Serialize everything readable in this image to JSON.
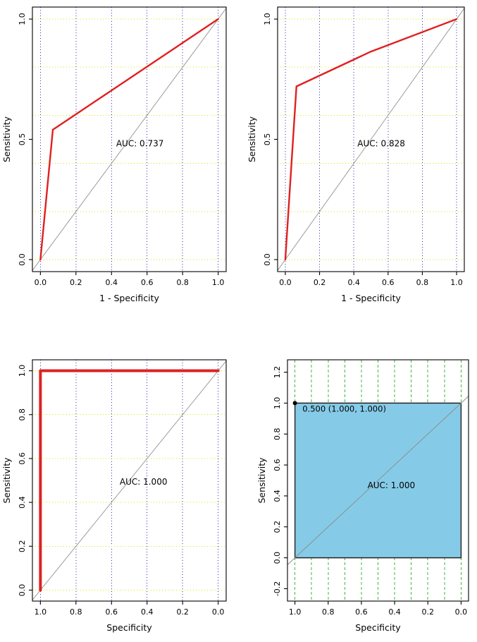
{
  "figure": {
    "background": "#ffffff",
    "panel_count": 4,
    "description": "Four ROC curve panels"
  },
  "chart_data": [
    {
      "type": "line",
      "name": "roc-top-left",
      "title": "",
      "xlabel": "1 - Specificity",
      "ylabel": "Sensitivity",
      "x_reversed": false,
      "x_range": [
        -0.045,
        1.045
      ],
      "y_range": [
        -0.05,
        1.05
      ],
      "x_ticks": [
        0,
        0.2,
        0.4,
        0.6,
        0.8,
        1
      ],
      "x_tick_labels": [
        "0.0",
        "0.2",
        "0.4",
        "0.6",
        "0.8",
        "1.0"
      ],
      "y_ticks": [
        0,
        0.5,
        1
      ],
      "y_tick_labels": [
        "0.0",
        "0.5",
        "1.0"
      ],
      "grid_v": {
        "values": [
          0,
          0.2,
          0.4,
          0.6,
          0.8,
          1
        ],
        "color": "#2b2bb4",
        "dash": "1,3"
      },
      "grid_h": {
        "values": [
          0,
          0.2,
          0.4,
          0.6,
          0.8,
          1
        ],
        "color": "#e2e200",
        "dash": "1,3"
      },
      "diagonal": {
        "from": [
          -0.045,
          -0.045
        ],
        "to": [
          1.045,
          1.045
        ],
        "color": "#9b9b9b"
      },
      "series": [
        {
          "name": "ROC curve",
          "color": "#e02020",
          "width": 2.4,
          "points": [
            [
              0,
              0
            ],
            [
              0.07,
              0.54
            ],
            [
              1,
              1
            ]
          ]
        }
      ],
      "annotations": [
        {
          "text": "AUC: 0.737",
          "x": 0.56,
          "y": 0.47,
          "color": "#e02020",
          "anchor": "middle",
          "size": 12
        }
      ]
    },
    {
      "type": "line",
      "name": "roc-top-right",
      "title": "",
      "xlabel": "1 - Specificity",
      "ylabel": "Sensitivity",
      "x_reversed": false,
      "x_range": [
        -0.045,
        1.045
      ],
      "y_range": [
        -0.05,
        1.05
      ],
      "x_ticks": [
        0,
        0.2,
        0.4,
        0.6,
        0.8,
        1
      ],
      "x_tick_labels": [
        "0.0",
        "0.2",
        "0.4",
        "0.6",
        "0.8",
        "1.0"
      ],
      "y_ticks": [
        0,
        0.5,
        1
      ],
      "y_tick_labels": [
        "0.0",
        "0.5",
        "1.0"
      ],
      "grid_v": {
        "values": [
          0,
          0.2,
          0.4,
          0.6,
          0.8,
          1
        ],
        "color": "#2b2bb4",
        "dash": "1,3"
      },
      "grid_h": {
        "values": [
          0,
          0.2,
          0.4,
          0.6,
          0.8,
          1
        ],
        "color": "#e2e200",
        "dash": "1,3"
      },
      "diagonal": {
        "from": [
          -0.045,
          -0.045
        ],
        "to": [
          1.045,
          1.045
        ],
        "color": "#9b9b9b"
      },
      "series": [
        {
          "name": "ROC curve",
          "color": "#e02020",
          "width": 2.4,
          "points": [
            [
              0,
              0
            ],
            [
              0.065,
              0.72
            ],
            [
              0.5,
              0.865
            ],
            [
              1,
              1
            ]
          ]
        }
      ],
      "annotations": [
        {
          "text": "AUC: 0.828",
          "x": 0.56,
          "y": 0.47,
          "color": "#e02020",
          "anchor": "middle",
          "size": 12
        }
      ]
    },
    {
      "type": "line",
      "name": "roc-bottom-left",
      "title": "",
      "xlabel": "Specificity",
      "ylabel": "Sensitivity",
      "x_reversed": true,
      "x_range": [
        -0.045,
        1.045
      ],
      "y_range": [
        -0.05,
        1.05
      ],
      "x_ticks": [
        1,
        0.8,
        0.6,
        0.4,
        0.2,
        0
      ],
      "x_tick_labels": [
        "1.0",
        "0.8",
        "0.6",
        "0.4",
        "0.2",
        "0.0"
      ],
      "y_ticks": [
        0,
        0.2,
        0.4,
        0.6,
        0.8,
        1
      ],
      "y_tick_labels": [
        "0.0",
        "0.2",
        "0.4",
        "0.6",
        "0.8",
        "1.0"
      ],
      "grid_v": {
        "values": [
          0,
          0.2,
          0.4,
          0.6,
          0.8,
          1
        ],
        "color": "#2b2bb4",
        "dash": "1,3"
      },
      "grid_h": {
        "values": [
          0,
          0.2,
          0.4,
          0.6,
          0.8,
          1
        ],
        "color": "#e2e200",
        "dash": "1,3"
      },
      "diagonal": {
        "from": [
          1.045,
          -0.045
        ],
        "to": [
          -0.045,
          1.045
        ],
        "color": "#9b9b9b"
      },
      "series": [
        {
          "name": "ROC curve",
          "color": "#e02020",
          "width": 4,
          "points": [
            [
              1,
              0
            ],
            [
              1,
              1
            ],
            [
              0,
              1
            ]
          ]
        }
      ],
      "annotations": [
        {
          "text": "AUC: 1.000",
          "x": 0.42,
          "y": 0.48,
          "color": "#e02020",
          "anchor": "middle",
          "size": 12
        }
      ]
    },
    {
      "type": "area",
      "name": "roc-bottom-right",
      "title": "",
      "xlabel": "Specificity",
      "ylabel": "Sensitivity",
      "x_reversed": true,
      "x_range": [
        -0.045,
        1.045
      ],
      "y_range": [
        -0.28,
        1.28
      ],
      "x_ticks": [
        1,
        0.8,
        0.6,
        0.4,
        0.2,
        0
      ],
      "x_tick_labels": [
        "1.0",
        "0.8",
        "0.6",
        "0.4",
        "0.2",
        "0.0"
      ],
      "y_ticks": [
        -0.2,
        0,
        0.2,
        0.4,
        0.6,
        0.8,
        1,
        1.2
      ],
      "y_tick_labels": [
        "-0.2",
        "0.0",
        "0.2",
        "0.4",
        "0.6",
        "0.8",
        "1.0",
        "1.2"
      ],
      "grid_v": {
        "values": [
          0,
          0.1,
          0.2,
          0.3,
          0.4,
          0.5,
          0.6,
          0.7,
          0.8,
          0.9,
          1
        ],
        "color": "#46b446",
        "dash": "4,3"
      },
      "diagonal": {
        "from": [
          1.045,
          -0.045
        ],
        "to": [
          -0.045,
          1.045
        ],
        "color": "#8e8e8e"
      },
      "fill_region": {
        "points": [
          [
            1,
            0
          ],
          [
            1,
            1
          ],
          [
            0,
            1
          ],
          [
            0,
            0
          ]
        ],
        "fill": "#85cbe8",
        "stroke": "#222222"
      },
      "points": [
        {
          "x": 1,
          "y": 1,
          "color": "#000000"
        }
      ],
      "annotations": [
        {
          "text": "0.500 (1.000, 1.000)",
          "x": 0.955,
          "y": 0.945,
          "color": "#000000",
          "anchor": "start",
          "size": 11.5
        },
        {
          "text": "AUC: 1.000",
          "x": 0.42,
          "y": 0.45,
          "color": "#000000",
          "anchor": "middle",
          "size": 12
        }
      ]
    }
  ]
}
